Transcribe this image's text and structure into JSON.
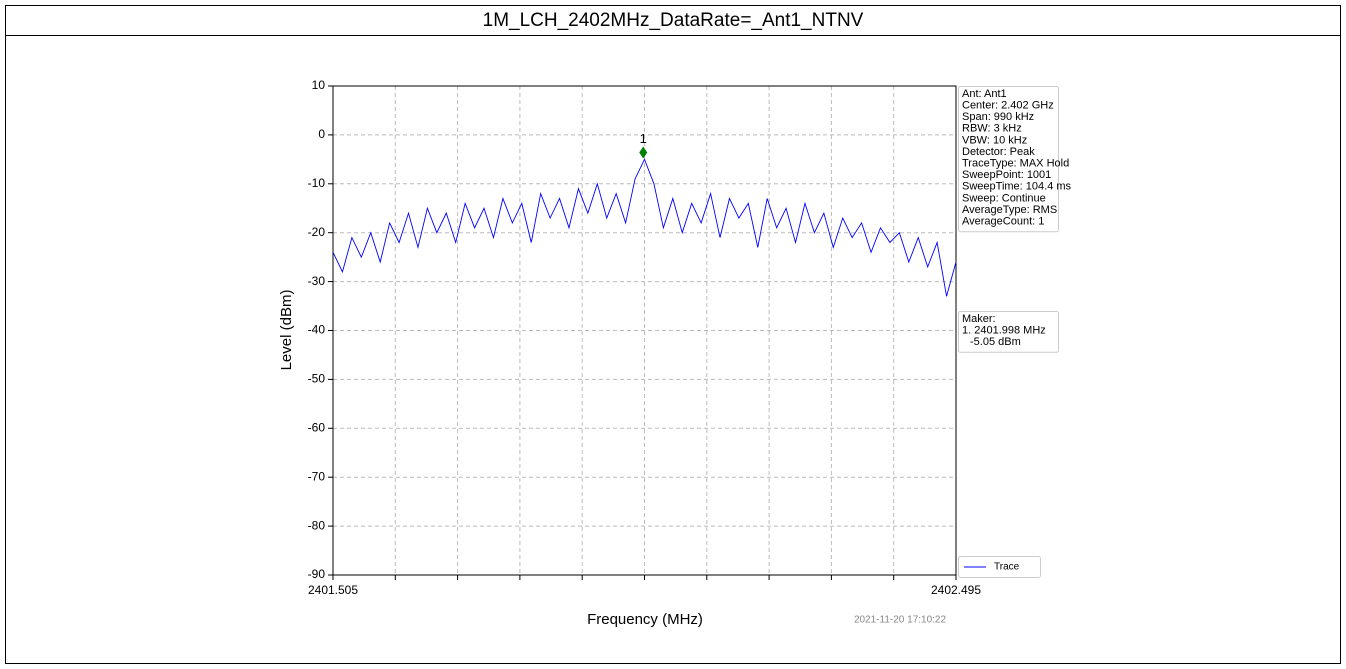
{
  "chart_data": {
    "type": "line",
    "title": "1M_LCH_2402MHz_DataRate=_Ant1_NTNV",
    "xlabel": "Frequency (MHz)",
    "ylabel": "Level (dBm)",
    "timestamp": "2021-11-20 17:10:22",
    "xlim": [
      2401.505,
      2402.495
    ],
    "xticks": [
      2401.505,
      2402.495
    ],
    "xgrid_divisions": 10,
    "ylim": [
      -90,
      10
    ],
    "yticks": [
      10,
      0,
      -10,
      -20,
      -30,
      -40,
      -50,
      -60,
      -70,
      -80,
      -90
    ],
    "grid": true,
    "legend": "lower right",
    "series": [
      {
        "name": "Trace",
        "color": "#0000ff",
        "x": [
          2401.505,
          2401.52,
          2401.535,
          2401.55,
          2401.565,
          2401.58,
          2401.595,
          2401.61,
          2401.625,
          2401.64,
          2401.655,
          2401.67,
          2401.685,
          2401.7,
          2401.715,
          2401.73,
          2401.745,
          2401.76,
          2401.775,
          2401.79,
          2401.805,
          2401.82,
          2401.835,
          2401.85,
          2401.865,
          2401.88,
          2401.895,
          2401.91,
          2401.925,
          2401.94,
          2401.955,
          2401.97,
          2401.985,
          2402.0,
          2402.015,
          2402.03,
          2402.045,
          2402.06,
          2402.075,
          2402.09,
          2402.105,
          2402.12,
          2402.135,
          2402.15,
          2402.165,
          2402.18,
          2402.195,
          2402.21,
          2402.225,
          2402.24,
          2402.255,
          2402.27,
          2402.285,
          2402.3,
          2402.315,
          2402.33,
          2402.345,
          2402.36,
          2402.375,
          2402.39,
          2402.405,
          2402.42,
          2402.435,
          2402.45,
          2402.465,
          2402.48,
          2402.495
        ],
        "values": [
          -24,
          -28,
          -21,
          -25,
          -20,
          -26,
          -18,
          -22,
          -16,
          -23,
          -15,
          -20,
          -16,
          -22,
          -14,
          -19,
          -15,
          -21,
          -13,
          -18,
          -14,
          -22,
          -12,
          -17,
          -13,
          -19,
          -11,
          -16,
          -10,
          -17,
          -12,
          -18,
          -9,
          -5,
          -10,
          -19,
          -13,
          -20,
          -14,
          -18,
          -12,
          -21,
          -13,
          -17,
          -14,
          -23,
          -13,
          -19,
          -15,
          -22,
          -14,
          -20,
          -16,
          -23,
          -17,
          -21,
          -18,
          -24,
          -19,
          -22,
          -20,
          -26,
          -21,
          -27,
          -22,
          -33,
          -26
        ]
      }
    ],
    "marker": {
      "label": "1",
      "x": 2401.998,
      "y": -3.6,
      "color": "#008000"
    },
    "info": [
      "Ant: Ant1",
      "Center: 2.402 GHz",
      "Span: 990 kHz",
      "RBW: 3 kHz",
      "VBW: 10 kHz",
      "Detector: Peak",
      "TraceType: MAX Hold",
      "SweepPoint: 1001",
      "SweepTime: 104.4 ms",
      "Sweep: Continue",
      "AverageType: RMS",
      "AverageCount: 1"
    ],
    "marker_box": [
      "Maker:",
      "1. 2401.998 MHz",
      "-5.05 dBm"
    ]
  }
}
